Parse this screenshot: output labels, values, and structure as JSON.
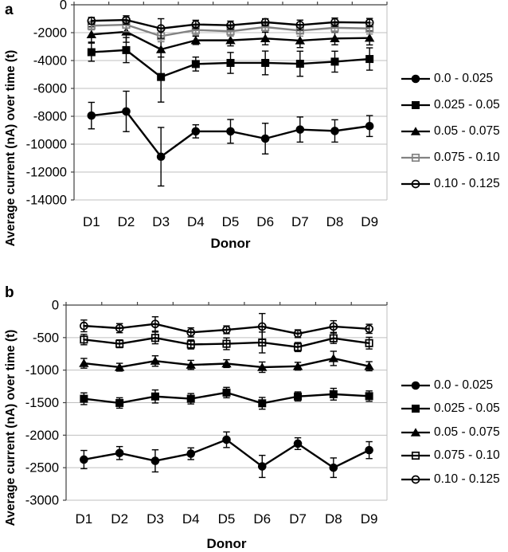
{
  "chart_data": [
    {
      "panel_label": "a",
      "type": "line",
      "title": "",
      "xlabel": "Donor",
      "ylabel": "Average current (nA) over time (t)",
      "categories": [
        "D1",
        "D2",
        "D3",
        "D4",
        "D5",
        "D6",
        "D7",
        "D8",
        "D9"
      ],
      "ylim": [
        -14000,
        0
      ],
      "ytick_step": 2000,
      "grid": true,
      "error_bars": true,
      "legend_position": "right",
      "series": [
        {
          "name": "0.0 - 0.025",
          "marker": "filled-circle",
          "color": "#000000",
          "values": [
            -7950,
            -7650,
            -10900,
            -9080,
            -9080,
            -9600,
            -8950,
            -9050,
            -8700
          ],
          "errors": [
            950,
            1450,
            2100,
            470,
            850,
            1100,
            900,
            800,
            750
          ]
        },
        {
          "name": "0.025 - 0.05",
          "marker": "filled-square",
          "color": "#000000",
          "values": [
            -3400,
            -3250,
            -5180,
            -4250,
            -4170,
            -4170,
            -4230,
            -4080,
            -3890
          ],
          "errors": [
            650,
            900,
            1800,
            500,
            750,
            850,
            900,
            750,
            800
          ]
        },
        {
          "name": "0.05 - 0.075",
          "marker": "filled-triangle",
          "color": "#000000",
          "values": [
            -2130,
            -1940,
            -3200,
            -2550,
            -2550,
            -2420,
            -2570,
            -2420,
            -2380
          ],
          "errors": [
            550,
            750,
            550,
            300,
            400,
            450,
            500,
            450,
            500
          ]
        },
        {
          "name": "0.075 - 0.10",
          "marker": "open-square",
          "color": "#828282",
          "values": [
            -1500,
            -1430,
            -2250,
            -1810,
            -1900,
            -1600,
            -1850,
            -1650,
            -1700
          ],
          "errors": [
            300,
            500,
            400,
            350,
            350,
            300,
            400,
            350,
            400
          ]
        },
        {
          "name": "0.10 - 0.125",
          "marker": "open-circle",
          "color": "#000000",
          "values": [
            -1150,
            -1090,
            -1700,
            -1410,
            -1470,
            -1250,
            -1450,
            -1250,
            -1280
          ],
          "errors": [
            250,
            300,
            700,
            300,
            300,
            250,
            350,
            300,
            300
          ]
        }
      ]
    },
    {
      "panel_label": "b",
      "type": "line",
      "title": "",
      "xlabel": "Donor",
      "ylabel": "Average current (nA) over time (t)",
      "categories": [
        "D1",
        "D2",
        "D3",
        "D4",
        "D5",
        "D6",
        "D7",
        "D8",
        "D9"
      ],
      "ylim": [
        -3000,
        0
      ],
      "ytick_step": 500,
      "grid": true,
      "error_bars": true,
      "legend_position": "right",
      "series": [
        {
          "name": "0.0 - 0.025",
          "marker": "filled-circle",
          "color": "#000000",
          "values": [
            -2375,
            -2275,
            -2395,
            -2285,
            -2070,
            -2480,
            -2130,
            -2500,
            -2230
          ],
          "errors": [
            140,
            100,
            170,
            90,
            120,
            170,
            90,
            150,
            130
          ]
        },
        {
          "name": "0.025 - 0.05",
          "marker": "filled-square",
          "color": "#000000",
          "values": [
            -1440,
            -1505,
            -1405,
            -1440,
            -1345,
            -1510,
            -1405,
            -1370,
            -1400
          ],
          "errors": [
            90,
            80,
            100,
            80,
            80,
            90,
            70,
            90,
            80
          ]
        },
        {
          "name": "0.05 - 0.075",
          "marker": "filled-triangle",
          "color": "#000000",
          "values": [
            -895,
            -955,
            -860,
            -920,
            -900,
            -955,
            -940,
            -820,
            -940
          ],
          "errors": [
            75,
            60,
            80,
            70,
            60,
            80,
            60,
            110,
            70
          ]
        },
        {
          "name": "0.075 - 0.10",
          "marker": "open-square",
          "color": "#000000",
          "values": [
            -530,
            -595,
            -505,
            -605,
            -595,
            -575,
            -645,
            -510,
            -585
          ],
          "errors": [
            80,
            60,
            90,
            70,
            90,
            160,
            70,
            80,
            90
          ]
        },
        {
          "name": "0.10 - 0.125",
          "marker": "open-circle",
          "color": "#000000",
          "values": [
            -320,
            -355,
            -290,
            -420,
            -380,
            -330,
            -440,
            -330,
            -365
          ],
          "errors": [
            90,
            70,
            110,
            70,
            60,
            200,
            60,
            90,
            70
          ]
        }
      ]
    }
  ]
}
